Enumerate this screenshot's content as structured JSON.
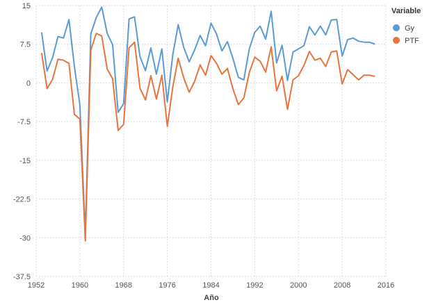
{
  "chart_data": {
    "type": "line",
    "title": "",
    "xlabel": "Año",
    "ylabel": "",
    "xlim": [
      1952,
      2016
    ],
    "ylim": [
      -37.5,
      15
    ],
    "xticks": [
      "1952",
      "1960",
      "1968",
      "1976",
      "1984",
      "1992",
      "2000",
      "2008",
      "2016"
    ],
    "yticks": [
      "15",
      "7.5",
      "0",
      "-7.5",
      "-15",
      "-22.5",
      "-30",
      "-37.5"
    ],
    "grid": true,
    "legend": {
      "title": "Variable",
      "position": "top-right"
    },
    "x": [
      1953,
      1954,
      1955,
      1956,
      1957,
      1958,
      1959,
      1960,
      1961,
      1962,
      1963,
      1964,
      1965,
      1966,
      1967,
      1968,
      1969,
      1970,
      1971,
      1972,
      1973,
      1974,
      1975,
      1976,
      1977,
      1978,
      1979,
      1980,
      1981,
      1982,
      1983,
      1984,
      1985,
      1986,
      1987,
      1988,
      1989,
      1990,
      1991,
      1992,
      1993,
      1994,
      1995,
      1996,
      1997,
      1998,
      1999,
      2000,
      2001,
      2002,
      2003,
      2004,
      2005,
      2006,
      2007,
      2008,
      2009,
      2010,
      2011,
      2012,
      2013,
      2014
    ],
    "series": [
      {
        "name": "Gy",
        "color": "#5b9bd5",
        "values": [
          9.8,
          2.3,
          4.9,
          9.0,
          8.7,
          12.3,
          3.2,
          -4.3,
          -29.3,
          9.5,
          12.7,
          14.7,
          9.6,
          7.4,
          -5.7,
          -4.0,
          12.4,
          12.8,
          5.1,
          2.4,
          6.8,
          1.7,
          6.6,
          -3.7,
          5.5,
          11.3,
          6.9,
          4.1,
          6.4,
          9.2,
          7.2,
          11.6,
          9.5,
          6.2,
          8.0,
          4.8,
          1.1,
          0.6,
          6.6,
          9.8,
          11.0,
          8.5,
          13.9,
          3.9,
          7.3,
          0.5,
          6.0,
          6.6,
          7.2,
          10.9,
          9.3,
          11.0,
          9.3,
          12.2,
          12.3,
          5.2,
          8.4,
          8.7,
          8.1,
          7.9,
          7.9,
          7.5
        ]
      },
      {
        "name": "PTF",
        "color": "#e8743b",
        "values": [
          5.8,
          -1.1,
          0.7,
          4.6,
          4.4,
          3.8,
          -6.1,
          -7.0,
          -30.6,
          6.4,
          9.6,
          9.1,
          2.7,
          0.8,
          -9.2,
          -8.0,
          6.8,
          7.9,
          -1.0,
          -3.3,
          1.4,
          -3.1,
          1.5,
          -8.4,
          -0.8,
          4.8,
          1.0,
          -1.8,
          0.3,
          3.5,
          1.5,
          5.3,
          3.8,
          1.7,
          2.8,
          -1.1,
          -4.2,
          -2.9,
          2.0,
          5.0,
          4.2,
          2.1,
          7.0,
          -1.5,
          1.3,
          -5.1,
          0.6,
          1.4,
          3.4,
          6.1,
          4.4,
          4.8,
          3.2,
          6.0,
          6.2,
          -0.2,
          2.6,
          1.6,
          0.6,
          1.5,
          1.5,
          1.3
        ]
      }
    ]
  }
}
